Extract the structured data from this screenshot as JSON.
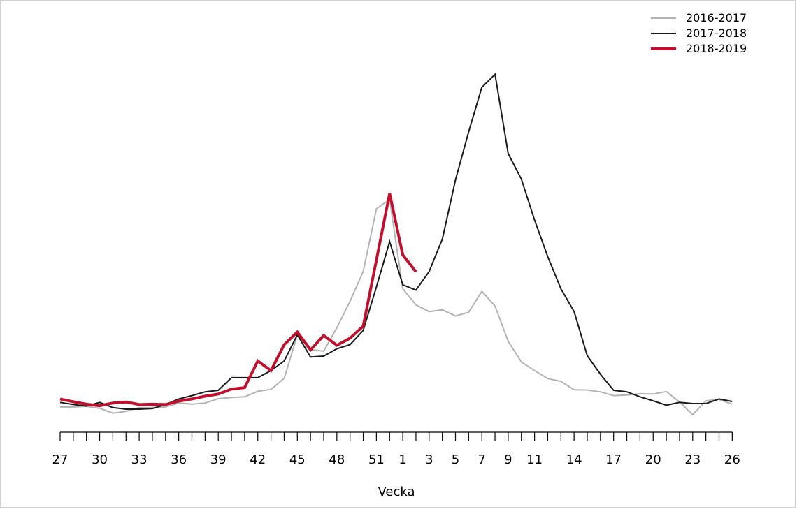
{
  "chart_data": {
    "type": "line",
    "title": "",
    "xlabel": "Vecka",
    "ylabel": "",
    "grid": false,
    "legend_position": "top-right",
    "weeks": [
      27,
      28,
      29,
      30,
      31,
      32,
      33,
      34,
      35,
      36,
      37,
      38,
      39,
      40,
      41,
      42,
      43,
      44,
      45,
      46,
      47,
      48,
      49,
      50,
      51,
      52,
      1,
      2,
      3,
      4,
      5,
      6,
      7,
      8,
      9,
      10,
      11,
      12,
      13,
      14,
      15,
      16,
      17,
      18,
      19,
      20,
      21,
      22,
      23,
      24,
      25,
      26
    ],
    "tick_labels": [
      "27",
      "30",
      "33",
      "36",
      "39",
      "42",
      "45",
      "48",
      "51",
      "1",
      "3",
      "5",
      "7",
      "9",
      "11",
      "14",
      "17",
      "20",
      "23",
      "26"
    ],
    "tick_label_indices": [
      0,
      3,
      6,
      9,
      12,
      15,
      18,
      21,
      24,
      26,
      28,
      30,
      32,
      34,
      36,
      39,
      42,
      45,
      48,
      51
    ],
    "ylim": [
      0,
      100
    ],
    "series": [
      {
        "name": "2016-2017",
        "color": "#b3b3b3",
        "width": 2,
        "values": [
          0.7,
          0.7,
          0.9,
          0.3,
          -1.3,
          -0.7,
          0.5,
          0.5,
          0.7,
          2.0,
          1.6,
          2.0,
          3.4,
          3.8,
          4.0,
          5.8,
          6.4,
          10.0,
          24.0,
          19.3,
          18.8,
          26.4,
          35.0,
          44.6,
          64.9,
          68.0,
          39.0,
          33.8,
          31.6,
          32.2,
          30.2,
          31.4,
          38.2,
          33.4,
          22.0,
          15.3,
          12.5,
          9.9,
          9.0,
          6.3,
          6.2,
          5.6,
          4.4,
          4.6,
          5.0,
          4.9,
          5.7,
          2.3,
          -1.8,
          2.7,
          3.2,
          1.6
        ]
      },
      {
        "name": "2017-2018",
        "color": "#1a1a1a",
        "width": 2,
        "values": [
          2.2,
          1.5,
          1.0,
          2.2,
          0.5,
          0.0,
          0.0,
          0.2,
          1.5,
          3.3,
          4.4,
          5.6,
          6.1,
          10.2,
          10.2,
          10.2,
          12.5,
          15.6,
          24.1,
          16.9,
          17.2,
          19.6,
          20.9,
          25.5,
          39.6,
          54.3,
          40.3,
          38.6,
          44.6,
          55.1,
          74.3,
          89.9,
          104.3,
          108.5,
          82.8,
          74.5,
          61.3,
          49.4,
          39.0,
          31.6,
          17.3,
          11.3,
          6.1,
          5.6,
          4.0,
          2.7,
          1.3,
          2.2,
          1.8,
          1.8,
          3.3,
          2.5
        ]
      },
      {
        "name": "2018-2019",
        "color": "#c0102e",
        "width": 4,
        "values": [
          3.3,
          2.4,
          1.6,
          1.1,
          2.0,
          2.3,
          1.5,
          1.6,
          1.5,
          2.6,
          3.3,
          4.2,
          4.9,
          6.5,
          7.0,
          15.6,
          12.5,
          20.9,
          25.0,
          19.2,
          23.9,
          20.7,
          23.0,
          26.9,
          48.3,
          69.9,
          50.0,
          44.5
        ]
      }
    ]
  }
}
